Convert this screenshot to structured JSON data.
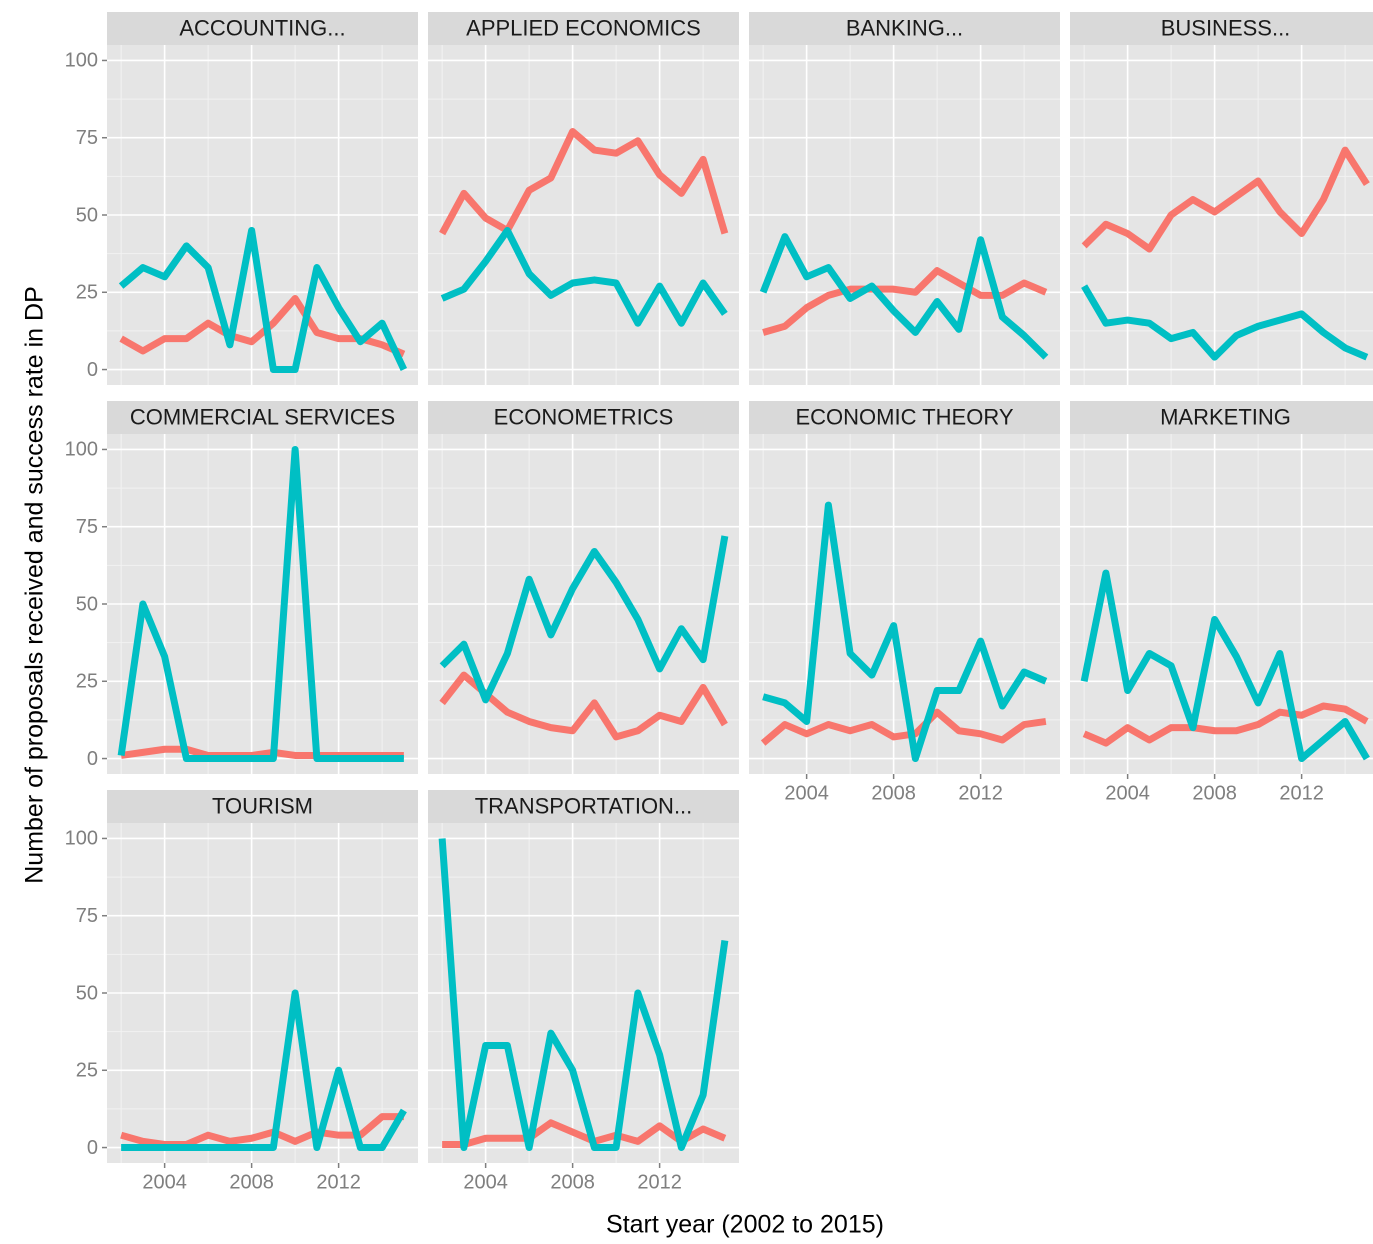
{
  "chart_data": {
    "type": "line",
    "xlabel": "Start year (2002 to 2015)",
    "ylabel": "Number of proposals received and success rate in DP",
    "x": [
      2002,
      2003,
      2004,
      2005,
      2006,
      2007,
      2008,
      2009,
      2010,
      2011,
      2012,
      2013,
      2014,
      2015
    ],
    "xlim": [
      2001.35,
      2015.65
    ],
    "xticks": [
      2004,
      2008,
      2012
    ],
    "ylim": [
      -5,
      105
    ],
    "yticks": [
      0,
      25,
      50,
      75,
      100
    ],
    "grid": true,
    "panels": [
      {
        "title": "ACCOUNTING...",
        "series": [
          {
            "color": "#F8766D",
            "values": [
              10,
              6,
              10,
              10,
              15,
              11,
              9,
              15,
              23,
              12,
              10,
              10,
              8,
              5
            ]
          },
          {
            "color": "#00BFC4",
            "values": [
              27,
              33,
              30,
              40,
              33,
              8,
              45,
              0,
              0,
              33,
              20,
              9,
              15,
              0
            ]
          }
        ]
      },
      {
        "title": "APPLIED ECONOMICS",
        "series": [
          {
            "color": "#F8766D",
            "values": [
              44,
              57,
              49,
              45,
              58,
              62,
              77,
              71,
              70,
              74,
              63,
              57,
              68,
              44
            ]
          },
          {
            "color": "#00BFC4",
            "values": [
              23,
              26,
              35,
              45,
              31,
              24,
              28,
              29,
              28,
              15,
              27,
              15,
              28,
              18
            ]
          }
        ]
      },
      {
        "title": "BANKING...",
        "series": [
          {
            "color": "#F8766D",
            "values": [
              12,
              14,
              20,
              24,
              26,
              26,
              26,
              25,
              32,
              28,
              24,
              24,
              28,
              25
            ]
          },
          {
            "color": "#00BFC4",
            "values": [
              25,
              43,
              30,
              33,
              23,
              27,
              19,
              12,
              22,
              13,
              42,
              17,
              11,
              4
            ]
          }
        ]
      },
      {
        "title": "BUSINESS...",
        "series": [
          {
            "color": "#F8766D",
            "values": [
              40,
              47,
              44,
              39,
              50,
              55,
              51,
              56,
              61,
              51,
              44,
              55,
              71,
              60
            ]
          },
          {
            "color": "#00BFC4",
            "values": [
              27,
              15,
              16,
              15,
              10,
              12,
              4,
              11,
              14,
              16,
              18,
              12,
              7,
              4
            ]
          }
        ]
      },
      {
        "title": "COMMERCIAL SERVICES",
        "series": [
          {
            "color": "#F8766D",
            "values": [
              1,
              2,
              3,
              3,
              1,
              1,
              1,
              2,
              1,
              1,
              1,
              1,
              1,
              1
            ]
          },
          {
            "color": "#00BFC4",
            "values": [
              1,
              50,
              33,
              0,
              0,
              0,
              0,
              0,
              100,
              0,
              0,
              0,
              0,
              0
            ]
          }
        ]
      },
      {
        "title": "ECONOMETRICS",
        "series": [
          {
            "color": "#F8766D",
            "values": [
              18,
              27,
              21,
              15,
              12,
              10,
              9,
              18,
              7,
              9,
              14,
              12,
              23,
              11
            ]
          },
          {
            "color": "#00BFC4",
            "values": [
              30,
              37,
              19,
              34,
              58,
              40,
              55,
              67,
              57,
              45,
              29,
              42,
              32,
              72
            ]
          }
        ]
      },
      {
        "title": "ECONOMIC THEORY",
        "series": [
          {
            "color": "#F8766D",
            "values": [
              5,
              11,
              8,
              11,
              9,
              11,
              7,
              8,
              15,
              9,
              8,
              6,
              11,
              12
            ]
          },
          {
            "color": "#00BFC4",
            "values": [
              20,
              18,
              12,
              82,
              34,
              27,
              43,
              0,
              22,
              22,
              38,
              17,
              28,
              25
            ]
          }
        ]
      },
      {
        "title": "MARKETING",
        "series": [
          {
            "color": "#F8766D",
            "values": [
              8,
              5,
              10,
              6,
              10,
              10,
              9,
              9,
              11,
              15,
              14,
              17,
              16,
              12
            ]
          },
          {
            "color": "#00BFC4",
            "values": [
              25,
              60,
              22,
              34,
              30,
              10,
              45,
              33,
              18,
              34,
              0,
              6,
              12,
              0
            ]
          }
        ]
      },
      {
        "title": "TOURISM",
        "series": [
          {
            "color": "#F8766D",
            "values": [
              4,
              2,
              1,
              1,
              4,
              2,
              3,
              5,
              2,
              5,
              4,
              4,
              10,
              10
            ]
          },
          {
            "color": "#00BFC4",
            "values": [
              0,
              0,
              0,
              0,
              0,
              0,
              0,
              0,
              50,
              0,
              25,
              0,
              0,
              12
            ]
          }
        ]
      },
      {
        "title": "TRANSPORTATION...",
        "series": [
          {
            "color": "#F8766D",
            "values": [
              1,
              1,
              3,
              3,
              3,
              8,
              5,
              2,
              4,
              2,
              7,
              2,
              6,
              3
            ]
          },
          {
            "color": "#00BFC4",
            "values": [
              100,
              0,
              33,
              33,
              0,
              37,
              25,
              0,
              0,
              50,
              30,
              0,
              17,
              67
            ]
          }
        ]
      }
    ]
  }
}
